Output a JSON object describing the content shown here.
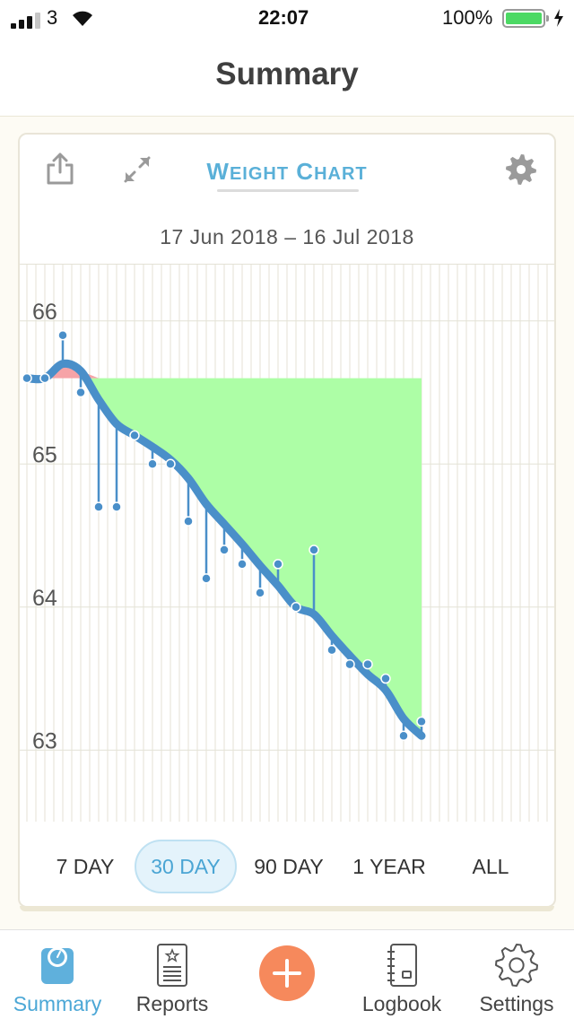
{
  "status_bar": {
    "carrier": "3",
    "time": "22:07",
    "battery": "100%"
  },
  "nav": {
    "title": "Summary"
  },
  "card": {
    "title_first": "W",
    "title_rest1": "EIGHT",
    "title_mid": " C",
    "title_rest2": "HART",
    "date_range": "17 Jun 2018 – 16 Jul 2018",
    "icons": {
      "share": "share-icon",
      "expand": "expand-icon",
      "settings": "gear-icon"
    }
  },
  "chart_data": {
    "type": "line",
    "ylim": [
      62.5,
      66.4
    ],
    "yticks": [
      63,
      64,
      65,
      66
    ],
    "days": [
      1,
      30
    ],
    "target": 65.6,
    "measurements": [
      65.6,
      65.6,
      65.9,
      65.5,
      64.7,
      64.7,
      65.2,
      65.0,
      65.0,
      64.6,
      64.2,
      64.4,
      64.3,
      64.1,
      64.3,
      64.0,
      64.4,
      63.7,
      63.6,
      63.6,
      63.5,
      63.1,
      63.2
    ],
    "trend": [
      65.6,
      65.6,
      65.7,
      65.65,
      65.45,
      65.28,
      65.2,
      65.12,
      65.03,
      64.9,
      64.72,
      64.58,
      64.44,
      64.29,
      64.15,
      64.0,
      63.95,
      63.8,
      63.66,
      63.53,
      63.42,
      63.22,
      63.1
    ],
    "colors": {
      "trend": "#4a8fc9",
      "loss_area": "#adfea6",
      "gain_area": "#f6a3a7",
      "grid": "#e4e2d6"
    }
  },
  "ranges": [
    "7 DAY",
    "30 DAY",
    "90 DAY",
    "1 YEAR",
    "ALL"
  ],
  "active_range": "30 DAY",
  "tabbar": {
    "items": [
      {
        "label": "Summary",
        "icon": "scale-icon"
      },
      {
        "label": "Reports",
        "icon": "report-icon"
      },
      {
        "label": "Logbook",
        "icon": "logbook-icon"
      },
      {
        "label": "Settings",
        "icon": "gear-icon"
      }
    ],
    "add_icon": "plus-icon"
  }
}
